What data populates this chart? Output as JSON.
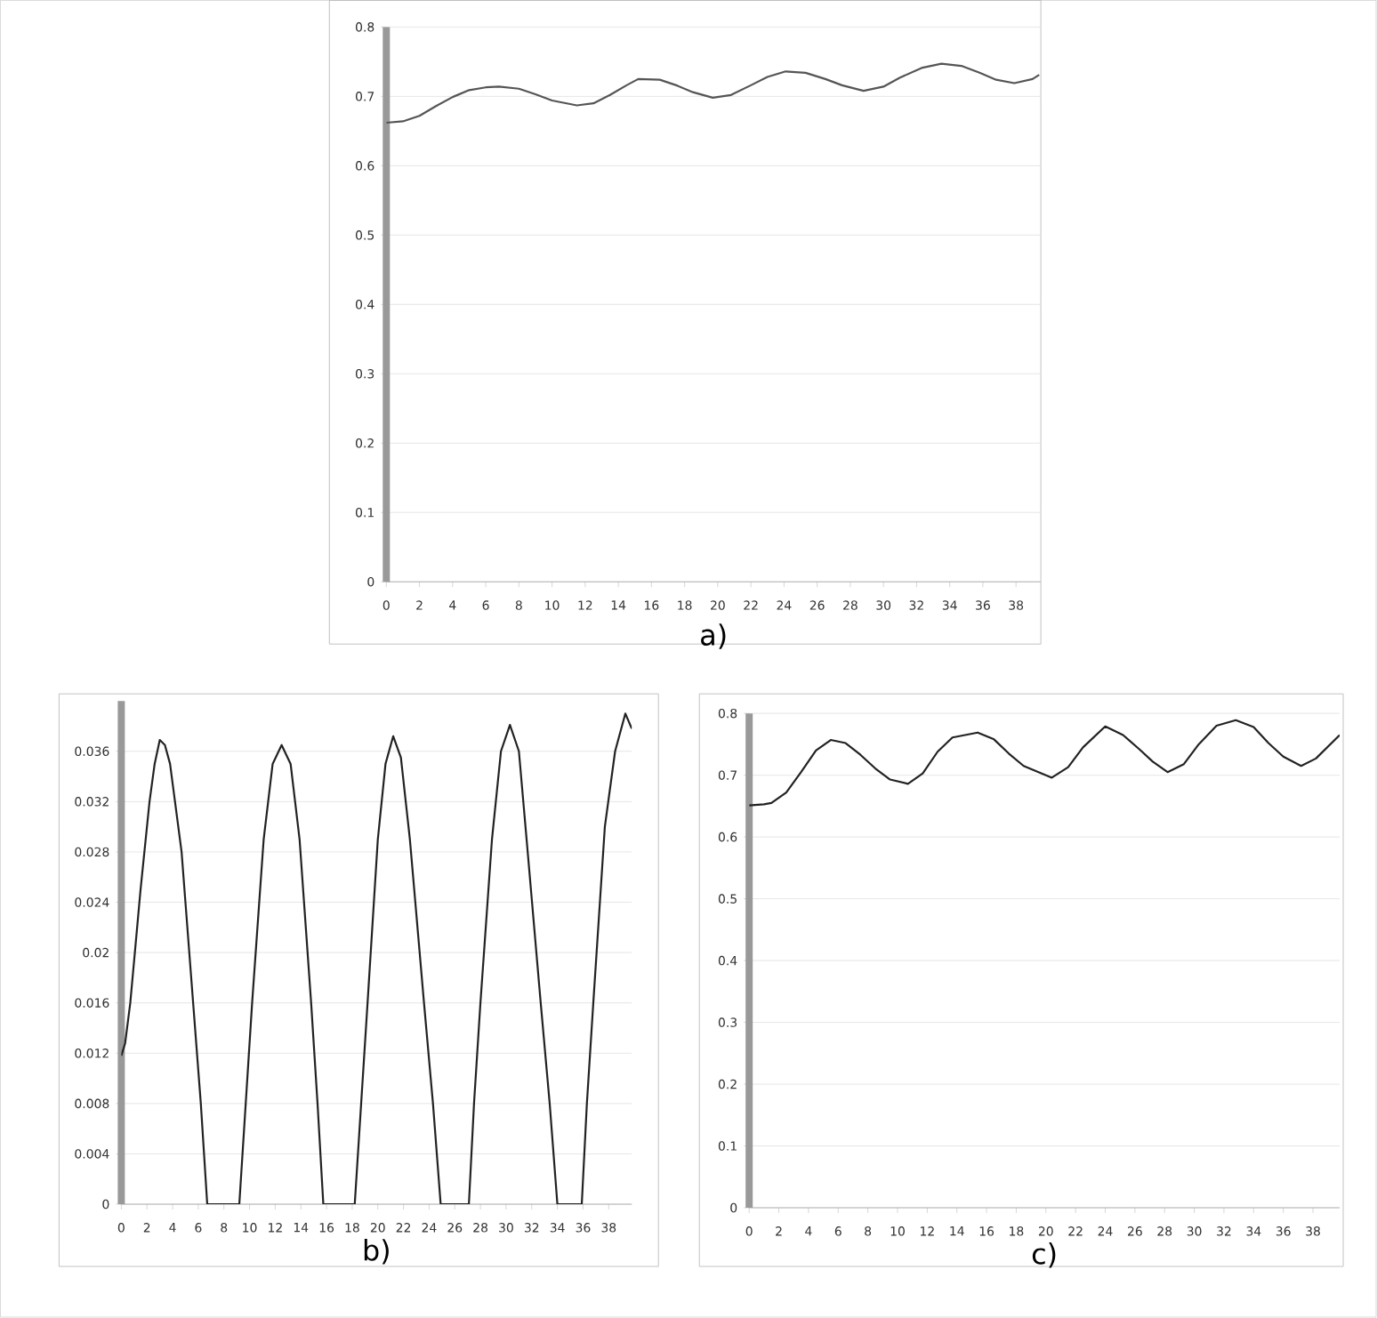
{
  "chart_data": [
    {
      "type": "line",
      "title": "a)",
      "color": "#555555",
      "grid": "y",
      "x": [
        0,
        1,
        2,
        3,
        4,
        5,
        6,
        6.8,
        8,
        9,
        10,
        11.5,
        12.5,
        13.5,
        14.5,
        15.2,
        16.5,
        17.5,
        18.5,
        19.7,
        20.8,
        22,
        23,
        24.1,
        25.3,
        26.5,
        27.5,
        28.8,
        30,
        31,
        32.3,
        33.5,
        34.7,
        35.8,
        36.8,
        37.9,
        39,
        39.4
      ],
      "values": [
        0.662,
        0.664,
        0.672,
        0.686,
        0.699,
        0.709,
        0.713,
        0.714,
        0.711,
        0.703,
        0.694,
        0.687,
        0.69,
        0.702,
        0.716,
        0.725,
        0.724,
        0.716,
        0.706,
        0.698,
        0.702,
        0.716,
        0.728,
        0.736,
        0.734,
        0.725,
        0.716,
        0.708,
        0.714,
        0.727,
        0.741,
        0.747,
        0.744,
        0.734,
        0.724,
        0.719,
        0.725,
        0.731
      ],
      "xlim": [
        0,
        39.5
      ],
      "xticks": [
        0,
        2,
        4,
        6,
        8,
        10,
        12,
        14,
        16,
        18,
        20,
        22,
        24,
        26,
        28,
        30,
        32,
        34,
        36,
        38
      ],
      "ylim": [
        0,
        0.8
      ],
      "yticks": [
        0,
        0.1,
        0.2,
        0.3,
        0.4,
        0.5,
        0.6,
        0.7,
        0.8
      ]
    },
    {
      "type": "line",
      "title": "b)",
      "color": "#222222",
      "grid": "y",
      "x": [
        0,
        0.3,
        0.7,
        1.1,
        1.5,
        2.2,
        2.6,
        3.0,
        3.4,
        3.8,
        4.7,
        5.6,
        6.2,
        6.7,
        9.2,
        9.7,
        10.2,
        11.1,
        11.8,
        12.5,
        13.2,
        13.9,
        14.8,
        15.3,
        15.75,
        18.2,
        18.7,
        19.2,
        20.0,
        20.6,
        21.2,
        21.8,
        22.5,
        23.6,
        24.3,
        24.9,
        27.1,
        27.5,
        28.0,
        28.9,
        29.6,
        30.3,
        31.0,
        31.6,
        32.7,
        33.4,
        34.0,
        35.9,
        36.3,
        36.8,
        37.7,
        38.5,
        39.3,
        39.8
      ],
      "values": [
        0.0118,
        0.0128,
        0.016,
        0.0205,
        0.025,
        0.032,
        0.035,
        0.0369,
        0.0365,
        0.035,
        0.028,
        0.016,
        0.008,
        0,
        0,
        0.008,
        0.016,
        0.029,
        0.035,
        0.0365,
        0.035,
        0.029,
        0.016,
        0.008,
        0,
        0,
        0.008,
        0.016,
        0.029,
        0.035,
        0.0372,
        0.0355,
        0.029,
        0.016,
        0.008,
        0,
        0,
        0.008,
        0.016,
        0.029,
        0.036,
        0.0381,
        0.036,
        0.029,
        0.016,
        0.008,
        0,
        0,
        0.008,
        0.016,
        0.03,
        0.036,
        0.039,
        0.0378
      ],
      "xlim": [
        0,
        39.8
      ],
      "xticks": [
        0,
        2,
        4,
        6,
        8,
        10,
        12,
        14,
        16,
        18,
        20,
        22,
        24,
        26,
        28,
        30,
        32,
        34,
        36,
        38
      ],
      "ylim": [
        0,
        0.04
      ],
      "yticks": [
        0,
        0.004,
        0.008,
        0.012,
        0.016,
        0.02,
        0.024,
        0.028,
        0.032,
        0.036
      ]
    },
    {
      "type": "line",
      "title": "c)",
      "color": "#222222",
      "grid": "y",
      "x": [
        0,
        1,
        1.5,
        2.5,
        3.5,
        4.5,
        5.5,
        6.5,
        7.5,
        8.5,
        9.5,
        10.7,
        11.7,
        12.7,
        13.7,
        15.4,
        16.5,
        17.5,
        18.5,
        20.4,
        21.5,
        22.5,
        24.0,
        25.2,
        26.3,
        27.2,
        28.2,
        29.3,
        30.3,
        31.5,
        32.8,
        34,
        35,
        36,
        37.2,
        38.2,
        39.8
      ],
      "values": [
        0.651,
        0.653,
        0.655,
        0.672,
        0.705,
        0.74,
        0.757,
        0.752,
        0.733,
        0.711,
        0.693,
        0.686,
        0.703,
        0.738,
        0.761,
        0.769,
        0.758,
        0.735,
        0.715,
        0.696,
        0.713,
        0.745,
        0.779,
        0.765,
        0.742,
        0.722,
        0.705,
        0.718,
        0.75,
        0.78,
        0.789,
        0.778,
        0.752,
        0.73,
        0.715,
        0.727,
        0.765
      ],
      "xlim": [
        0,
        39.8
      ],
      "xticks": [
        0,
        2,
        4,
        6,
        8,
        10,
        12,
        14,
        16,
        18,
        20,
        22,
        24,
        26,
        28,
        30,
        32,
        34,
        36,
        38
      ],
      "ylim": [
        0,
        0.8
      ],
      "yticks": [
        0,
        0.1,
        0.2,
        0.3,
        0.4,
        0.5,
        0.6,
        0.7,
        0.8
      ]
    }
  ]
}
